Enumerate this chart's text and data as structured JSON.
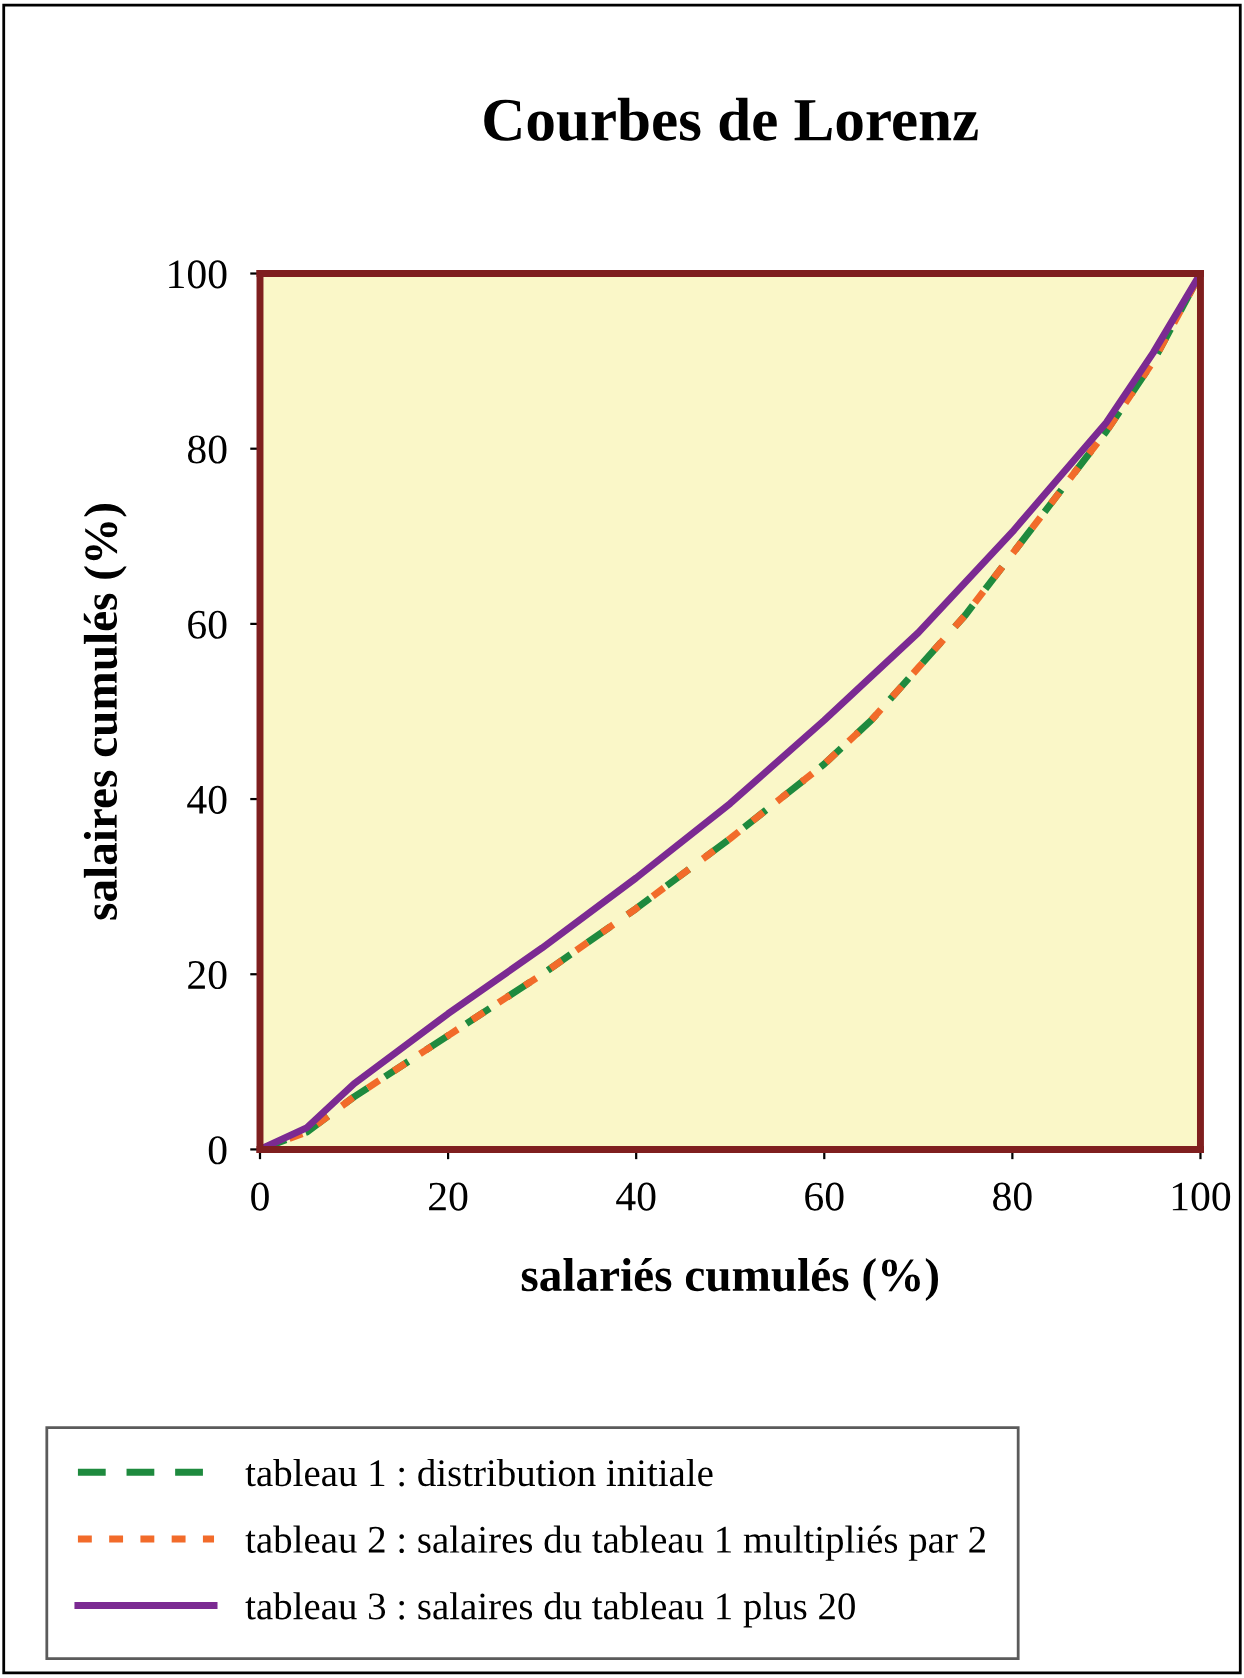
{
  "chart_data": {
    "type": "line",
    "title": "Courbes de Lorenz",
    "xlabel": "salariés cumulés (%)",
    "ylabel": "salaires cumulés (%)",
    "xlim": [
      0,
      100
    ],
    "ylim": [
      0,
      100
    ],
    "xticks": [
      0,
      20,
      40,
      60,
      80,
      100
    ],
    "yticks": [
      0,
      20,
      40,
      60,
      80,
      100
    ],
    "grid": false,
    "legend": "bottom",
    "marker": "none",
    "series": [
      {
        "name": "tableau 1 : distribution initiale",
        "color": "#1e8a3e",
        "line_style": "dashed",
        "x": [
          0,
          5,
          10,
          20,
          30,
          40,
          50,
          60,
          65,
          70,
          75,
          80,
          85,
          90,
          95,
          100
        ],
        "values": [
          0,
          2,
          6,
          13,
          20,
          27.5,
          35.5,
          44,
          49,
          55,
          61,
          68,
          75,
          82,
          90,
          100
        ]
      },
      {
        "name": "tableau 2 : salaires du tableau 1 multipliés par 2",
        "color": "#f26b2a",
        "line_style": "dotted",
        "x": [
          0,
          5,
          10,
          20,
          30,
          40,
          50,
          60,
          65,
          70,
          75,
          80,
          85,
          90,
          95,
          100
        ],
        "values": [
          0,
          2,
          6,
          13,
          20,
          27.5,
          35.5,
          44,
          49,
          55,
          61,
          68,
          75,
          82,
          90,
          100
        ]
      },
      {
        "name": "tableau 3 : salaires du tableau 1 plus 20",
        "color": "#7b2a92",
        "line_style": "solid",
        "x": [
          0,
          5,
          10,
          20,
          30,
          40,
          50,
          60,
          70,
          80,
          90,
          95,
          100
        ],
        "values": [
          0,
          2.5,
          7.5,
          15.5,
          23,
          31,
          39.5,
          49,
          59,
          70.5,
          83,
          91,
          100
        ]
      }
    ]
  }
}
